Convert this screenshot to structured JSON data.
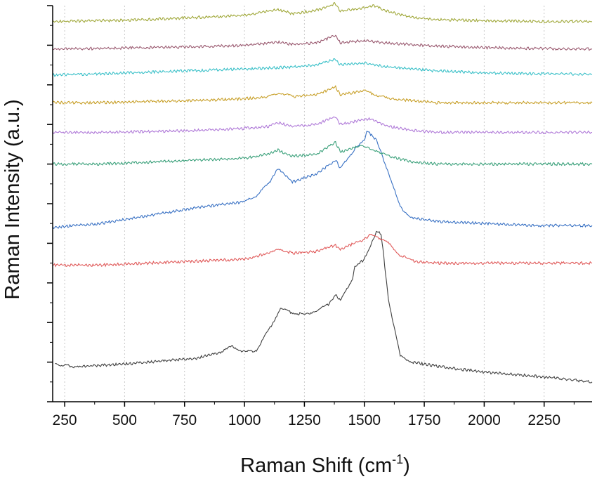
{
  "chart_data": {
    "type": "line",
    "title": "",
    "xlabel": "Raman Shift (cm",
    "xlabel_sup": "-1",
    "xlabel_close": ")",
    "ylabel": "Raman Intensity (a.u.)",
    "xlim": [
      200,
      2450
    ],
    "ylim": [
      0,
      10
    ],
    "x_ticks": [
      250,
      500,
      750,
      1000,
      1250,
      1500,
      1750,
      2000,
      2250
    ],
    "x_tick_labels": [
      "250",
      "500",
      "750",
      "1000",
      "1250",
      "1500",
      "1750",
      "2000",
      "2250"
    ],
    "y_tick_labels": [],
    "grid": "vertical dotted at x ticks",
    "legend": "none",
    "series": [
      {
        "color": "#404040",
        "x": [
          210,
          300,
          400,
          500,
          600,
          700,
          800,
          900,
          950,
          1000,
          1050,
          1100,
          1150,
          1200,
          1250,
          1300,
          1350,
          1380,
          1400,
          1450,
          1460,
          1500,
          1550,
          1570,
          1600,
          1650,
          1700,
          1800,
          1900,
          2000,
          2100,
          2200,
          2300,
          2450
        ],
        "y": [
          0.95,
          0.88,
          0.92,
          0.95,
          1.0,
          1.05,
          1.1,
          1.25,
          1.4,
          1.25,
          1.3,
          1.8,
          2.35,
          2.25,
          2.2,
          2.3,
          2.45,
          2.7,
          2.55,
          3.1,
          3.4,
          3.6,
          4.3,
          4.25,
          2.6,
          1.15,
          1.0,
          0.9,
          0.82,
          0.75,
          0.7,
          0.65,
          0.6,
          0.5
        ]
      },
      {
        "color": "#e05a5a",
        "x": [
          200,
          400,
          600,
          800,
          1000,
          1100,
          1150,
          1200,
          1300,
          1380,
          1400,
          1500,
          1530,
          1600,
          1650,
          1700,
          1800,
          2000,
          2200,
          2450
        ],
        "y": [
          3.45,
          3.45,
          3.5,
          3.55,
          3.6,
          3.75,
          3.85,
          3.75,
          3.8,
          3.95,
          3.85,
          4.1,
          4.25,
          4.0,
          3.7,
          3.55,
          3.5,
          3.5,
          3.5,
          3.5
        ]
      },
      {
        "color": "#3a72c4",
        "x": [
          200,
          400,
          600,
          800,
          1000,
          1050,
          1100,
          1140,
          1200,
          1300,
          1380,
          1400,
          1450,
          1500,
          1510,
          1550,
          1600,
          1650,
          1700,
          1800,
          2000,
          2200,
          2450
        ],
        "y": [
          4.4,
          4.5,
          4.7,
          4.9,
          5.05,
          5.2,
          5.5,
          5.9,
          5.55,
          5.75,
          6.1,
          5.9,
          6.3,
          6.6,
          6.85,
          6.6,
          5.8,
          4.9,
          4.65,
          4.55,
          4.5,
          4.45,
          4.45
        ]
      },
      {
        "color": "#3aa07a",
        "x": [
          200,
          400,
          600,
          800,
          1000,
          1100,
          1140,
          1200,
          1300,
          1380,
          1400,
          1480,
          1550,
          1600,
          1700,
          1800,
          2000,
          2200,
          2450
        ],
        "y": [
          6.0,
          6.0,
          6.05,
          6.1,
          6.15,
          6.25,
          6.35,
          6.2,
          6.25,
          6.55,
          6.3,
          6.45,
          6.35,
          6.2,
          6.05,
          6.0,
          6.0,
          6.0,
          6.0
        ]
      },
      {
        "color": "#b07ad8",
        "x": [
          200,
          400,
          600,
          800,
          1000,
          1100,
          1140,
          1200,
          1300,
          1380,
          1400,
          1520,
          1600,
          1700,
          1800,
          2000,
          2200,
          2450
        ],
        "y": [
          6.8,
          6.8,
          6.82,
          6.85,
          6.9,
          6.95,
          7.05,
          6.95,
          7.0,
          7.2,
          7.0,
          7.15,
          6.95,
          6.85,
          6.8,
          6.8,
          6.8,
          6.8
        ]
      },
      {
        "color": "#c8a02a",
        "x": [
          200,
          400,
          600,
          800,
          1000,
          1100,
          1150,
          1200,
          1300,
          1380,
          1400,
          1500,
          1550,
          1600,
          1700,
          1800,
          2000,
          2200,
          2450
        ],
        "y": [
          7.55,
          7.55,
          7.58,
          7.6,
          7.65,
          7.7,
          7.8,
          7.7,
          7.75,
          7.95,
          7.75,
          7.85,
          7.75,
          7.65,
          7.6,
          7.55,
          7.55,
          7.55,
          7.55
        ]
      },
      {
        "color": "#3ac0c8",
        "x": [
          200,
          400,
          600,
          800,
          1000,
          1200,
          1300,
          1380,
          1400,
          1500,
          1600,
          1800,
          2000,
          2200,
          2450
        ],
        "y": [
          8.25,
          8.28,
          8.32,
          8.36,
          8.4,
          8.45,
          8.5,
          8.65,
          8.5,
          8.55,
          8.45,
          8.35,
          8.3,
          8.28,
          8.27
        ]
      },
      {
        "color": "#9a5a70",
        "x": [
          200,
          400,
          600,
          800,
          1000,
          1140,
          1200,
          1300,
          1380,
          1400,
          1500,
          1600,
          1800,
          2000,
          2200,
          2450
        ],
        "y": [
          8.9,
          8.92,
          8.94,
          8.96,
          9.0,
          9.08,
          9.02,
          9.06,
          9.25,
          9.06,
          9.12,
          9.05,
          8.98,
          8.94,
          8.92,
          8.9
        ]
      },
      {
        "color": "#a0a83a",
        "x": [
          200,
          400,
          600,
          800,
          1000,
          1140,
          1200,
          1300,
          1380,
          1400,
          1500,
          1540,
          1600,
          1700,
          1800,
          2000,
          2200,
          2450
        ],
        "y": [
          9.6,
          9.62,
          9.65,
          9.7,
          9.75,
          9.9,
          9.8,
          9.88,
          10.05,
          9.85,
          9.95,
          10.0,
          9.85,
          9.7,
          9.65,
          9.62,
          9.6,
          9.6
        ]
      }
    ]
  }
}
